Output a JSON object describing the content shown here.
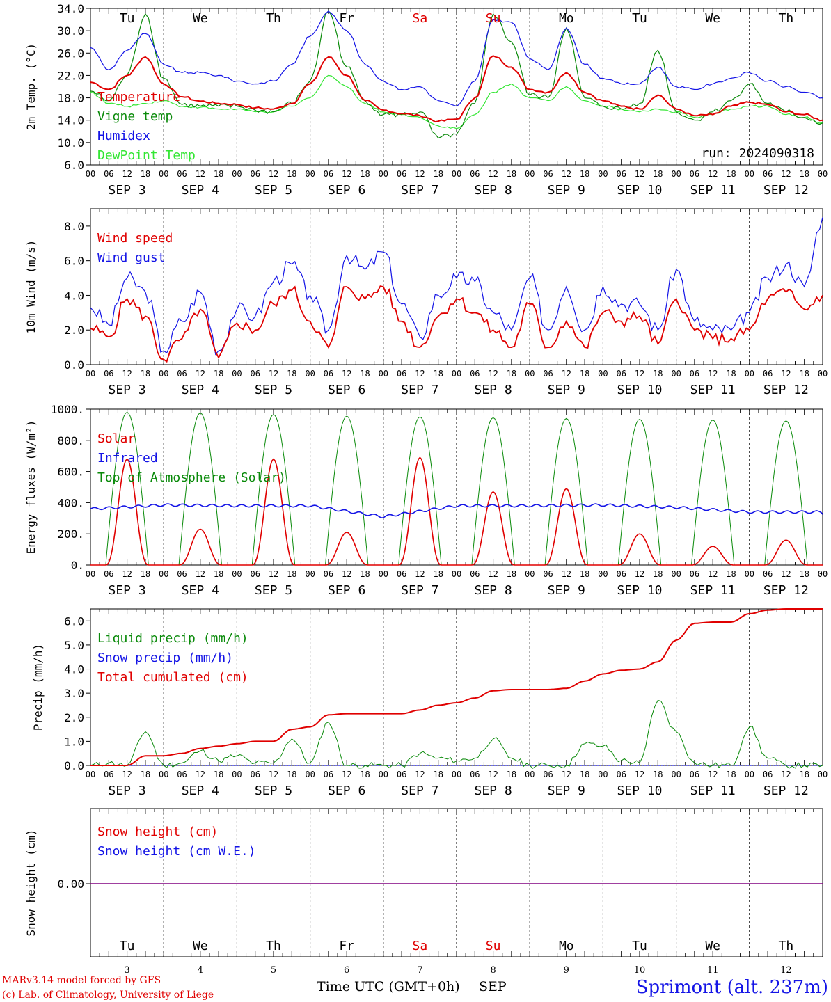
{
  "colors": {
    "red": "#e00000",
    "green": "#0a8a0a",
    "blue": "#1414e6",
    "lightgreen": "#33e633",
    "purple": "#800080",
    "grid": "#000000"
  },
  "time_axis": {
    "hour_ticks": [
      "00",
      "06",
      "12",
      "18"
    ],
    "end_tick": "00",
    "dates": [
      "SEP  3",
      "SEP  4",
      "SEP  5",
      "SEP  6",
      "SEP  7",
      "SEP  8",
      "SEP  9",
      "SEP 10",
      "SEP 11",
      "SEP 12"
    ],
    "weekdays": [
      "Tu",
      "We",
      "Th",
      "Fr",
      "Sa",
      "Su",
      "Mo",
      "Tu",
      "We",
      "Th"
    ],
    "weekend_index": [
      4,
      5
    ],
    "day_numbers": [
      "3",
      "4",
      "5",
      "6",
      "7",
      "8",
      "9",
      "10",
      "11",
      "12"
    ],
    "xlabel": "Time UTC (GMT+0h)",
    "month": "SEP"
  },
  "run_label": "run: 2024090318",
  "footer": {
    "model": "MARv3.14 model forced by GFS",
    "lab": "(c) Lab. of Climatology, University of Liege",
    "station": "Sprimont (alt. 237m)"
  },
  "chart_data": [
    {
      "type": "line",
      "ylabel": "2m Temp. (°C)",
      "ylim": [
        6.0,
        34.0
      ],
      "yticks": [
        "6.0",
        "10.0",
        "14.0",
        "18.0",
        "22.0",
        "26.0",
        "30.0",
        "34.0"
      ],
      "legend": [
        "Temperature",
        "Vigne temp",
        "Humidex",
        "DewPoint Temp"
      ],
      "x_hours": [
        0,
        6,
        12,
        18,
        24,
        30,
        36,
        42,
        48,
        54,
        60,
        66,
        72,
        78,
        84,
        90,
        96,
        102,
        108,
        114,
        120,
        126,
        132,
        138,
        144,
        150,
        156,
        162,
        168,
        174,
        180,
        186,
        192,
        198,
        204,
        210,
        216,
        222,
        228,
        234,
        240
      ],
      "series": [
        {
          "name": "Temperature",
          "color": "red",
          "values": [
            20.8,
            19.5,
            22,
            25.3,
            20.5,
            18.2,
            17.4,
            17.0,
            16.8,
            16.2,
            16.0,
            17.0,
            20.5,
            25.3,
            22.0,
            17.5,
            15.8,
            15.2,
            14.8,
            13.8,
            14.2,
            18.0,
            25.5,
            23.5,
            19.5,
            19.0,
            22.5,
            19.0,
            17.5,
            16.5,
            16.0,
            18.5,
            16.0,
            14.8,
            15.0,
            16.5,
            17.2,
            16.8,
            15.5,
            15.0,
            14.0
          ]
        },
        {
          "name": "Vigne temp",
          "color": "green",
          "values": [
            19.2,
            17.5,
            22,
            33.0,
            21.5,
            16.8,
            16.5,
            16.5,
            16.5,
            15.8,
            15.5,
            17.0,
            21.0,
            33.5,
            23.5,
            17.5,
            15.0,
            15.0,
            15.5,
            10.8,
            11.5,
            17.0,
            33.0,
            28.0,
            18.5,
            18.0,
            30.5,
            18.0,
            16.5,
            16.0,
            17.0,
            26.5,
            15.5,
            14.0,
            15.5,
            17.5,
            20.5,
            17.0,
            15.5,
            14.5,
            13.5
          ]
        },
        {
          "name": "Humidex",
          "color": "blue",
          "values": [
            27.0,
            23.0,
            26.5,
            29.5,
            24.0,
            22.5,
            22.5,
            22.0,
            21.0,
            20.5,
            21.0,
            24.0,
            29.0,
            33.5,
            30.0,
            24.0,
            21.0,
            19.5,
            20.0,
            17.5,
            16.5,
            21.0,
            32.0,
            31.5,
            25.0,
            23.0,
            30.5,
            24.0,
            21.5,
            20.5,
            20.5,
            23.5,
            20.0,
            19.5,
            20.5,
            21.5,
            22.5,
            21.0,
            20.0,
            19.0,
            18.0
          ]
        },
        {
          "name": "DewPoint Temp",
          "color": "lightgreen",
          "values": [
            19.0,
            17.0,
            16.5,
            17.0,
            17.5,
            16.5,
            16.3,
            16.0,
            16.0,
            15.5,
            15.5,
            16.5,
            18.0,
            22.0,
            20.0,
            17.0,
            15.5,
            15.0,
            14.5,
            13.0,
            12.5,
            15.0,
            19.0,
            20.5,
            18.0,
            17.5,
            20.0,
            17.5,
            16.5,
            16.0,
            15.5,
            16.0,
            15.5,
            14.5,
            15.0,
            16.0,
            16.5,
            16.5,
            15.0,
            14.5,
            13.5
          ]
        }
      ]
    },
    {
      "type": "line",
      "ylabel": "10m Wind (m/s)",
      "ylim": [
        0.0,
        9.0
      ],
      "yticks": [
        "0.0",
        "2.0",
        "4.0",
        "6.0",
        "8.0"
      ],
      "reference_line": 5.0,
      "legend": [
        "Wind speed",
        "Wind gust"
      ],
      "x_hours": [
        0,
        6,
        12,
        18,
        24,
        30,
        36,
        42,
        48,
        54,
        60,
        66,
        72,
        78,
        84,
        90,
        96,
        102,
        108,
        114,
        120,
        126,
        132,
        138,
        144,
        150,
        156,
        162,
        168,
        174,
        180,
        186,
        192,
        198,
        204,
        210,
        216,
        222,
        228,
        234,
        240
      ],
      "series": [
        {
          "name": "Wind speed",
          "color": "red",
          "values": [
            2.1,
            1.6,
            3.8,
            2.8,
            0.3,
            1.5,
            3.2,
            0.4,
            2.4,
            2.0,
            3.5,
            4.3,
            2.5,
            1.0,
            4.5,
            3.8,
            4.5,
            2.5,
            1.0,
            2.8,
            3.8,
            3.0,
            2.0,
            1.0,
            3.5,
            1.0,
            2.5,
            1.0,
            3.0,
            2.5,
            2.8,
            1.2,
            3.8,
            2.0,
            1.5,
            1.5,
            2.0,
            3.8,
            4.2,
            3.2,
            4.0
          ]
        },
        {
          "name": "Wind gust",
          "color": "blue",
          "values": [
            3.3,
            2.3,
            5.0,
            4.2,
            0.8,
            2.5,
            4.2,
            0.8,
            3.2,
            2.8,
            4.8,
            5.8,
            4.0,
            2.0,
            6.3,
            5.5,
            6.5,
            3.5,
            1.6,
            4.0,
            5.0,
            4.8,
            3.0,
            2.0,
            5.0,
            2.0,
            4.5,
            2.0,
            4.5,
            3.5,
            3.5,
            2.0,
            5.5,
            2.5,
            2.0,
            2.0,
            3.0,
            5.0,
            5.8,
            4.5,
            8.5
          ]
        }
      ]
    },
    {
      "type": "line",
      "ylabel": "Energy fluxes (W/m²)",
      "ylim": [
        0,
        1000
      ],
      "yticks": [
        "0.",
        "200.",
        "400.",
        "600.",
        "800.",
        "1000."
      ],
      "legend": [
        "Solar",
        "Infrared",
        "Top of Atmosphere (Solar)"
      ],
      "daily_toa_peak": [
        980,
        975,
        965,
        955,
        950,
        945,
        940,
        935,
        930,
        925
      ],
      "daily_solar_peak": [
        680,
        230,
        680,
        210,
        690,
        470,
        490,
        200,
        120,
        160
      ],
      "infrared_daily": [
        360,
        385,
        380,
        380,
        310,
        380,
        380,
        385,
        370,
        340
      ]
    },
    {
      "type": "line",
      "ylabel": "Precip (mm/h)",
      "ylim": [
        0.0,
        6.5
      ],
      "yticks": [
        "0.0",
        "1.0",
        "2.0",
        "3.0",
        "4.0",
        "5.0",
        "6.0"
      ],
      "legend": [
        "Liquid precip (mm/h)",
        "Snow precip (mm/h)",
        "Total cumulated (cm)"
      ],
      "x_hours": [
        0,
        6,
        12,
        18,
        24,
        30,
        36,
        42,
        48,
        54,
        60,
        66,
        72,
        78,
        84,
        90,
        96,
        102,
        108,
        114,
        120,
        126,
        132,
        138,
        144,
        150,
        156,
        162,
        168,
        174,
        180,
        186,
        192,
        198,
        204,
        210,
        216,
        222,
        228,
        234,
        240
      ],
      "series": [
        {
          "name": "Total cumulated (cm)",
          "color": "red",
          "values": [
            0.0,
            0.0,
            0.0,
            0.4,
            0.4,
            0.5,
            0.7,
            0.8,
            0.9,
            1.0,
            1.0,
            1.5,
            1.6,
            2.1,
            2.15,
            2.15,
            2.15,
            2.15,
            2.3,
            2.5,
            2.6,
            2.8,
            3.1,
            3.15,
            3.15,
            3.15,
            3.2,
            3.5,
            3.8,
            3.95,
            4.0,
            4.3,
            5.2,
            5.9,
            5.95,
            5.95,
            6.3,
            6.45,
            6.5,
            6.5,
            6.5
          ]
        },
        {
          "name": "Liquid precip (mm/h)",
          "color": "green",
          "values": [
            0.0,
            0.1,
            0.0,
            1.4,
            0.0,
            0.1,
            0.6,
            0.2,
            0.4,
            0.1,
            0.1,
            1.1,
            0.1,
            1.8,
            0.0,
            0.0,
            0.0,
            0.0,
            0.5,
            0.3,
            0.2,
            0.3,
            1.1,
            0.3,
            0.0,
            0.0,
            0.0,
            0.9,
            0.8,
            0.2,
            0.1,
            2.7,
            1.4,
            0.1,
            0.0,
            0.0,
            1.6,
            0.3,
            0.0,
            0.0,
            0.0
          ]
        },
        {
          "name": "Snow precip (mm/h)",
          "color": "blue",
          "values": [
            0,
            0,
            0,
            0,
            0,
            0,
            0,
            0,
            0,
            0,
            0,
            0,
            0,
            0,
            0,
            0,
            0,
            0,
            0,
            0,
            0,
            0,
            0,
            0,
            0,
            0,
            0,
            0,
            0,
            0,
            0,
            0,
            0,
            0,
            0,
            0,
            0,
            0,
            0,
            0,
            0
          ]
        }
      ]
    },
    {
      "type": "line",
      "ylabel": "Snow height (cm)",
      "yticks": [
        "0.00"
      ],
      "legend": [
        "Snow height (cm)",
        "Snow height (cm W.E.)"
      ],
      "values": [
        0.0
      ]
    }
  ]
}
